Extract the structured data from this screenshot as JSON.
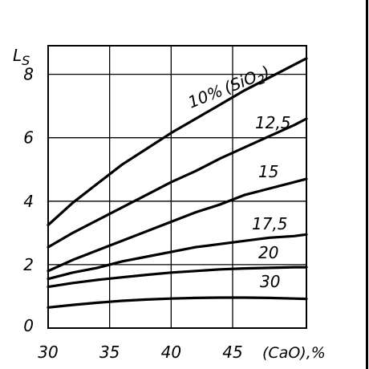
{
  "chart_data": {
    "type": "line",
    "title": "",
    "ylabel_main": "L",
    "ylabel_sub": "S",
    "xlabel": "(CaO),%",
    "x_ticks": [
      "30",
      "35",
      "40",
      "45"
    ],
    "y_ticks": [
      "0",
      "2",
      "4",
      "6",
      "8"
    ],
    "xlim": [
      30,
      51
    ],
    "ylim": [
      0,
      8.9
    ],
    "grid": true,
    "series_label_prefix": "(SiO",
    "series_label_sub": "2",
    "series_label_suffix": ")",
    "series": [
      {
        "name": "10%",
        "x": [
          30,
          32,
          34,
          36,
          38,
          40,
          42,
          44,
          46,
          48,
          50,
          51
        ],
        "y": [
          3.25,
          3.95,
          4.55,
          5.15,
          5.65,
          6.15,
          6.6,
          7.05,
          7.5,
          7.9,
          8.3,
          8.5
        ]
      },
      {
        "name": "12,5",
        "x": [
          30,
          32,
          34,
          36,
          38,
          40,
          42,
          44,
          46,
          48,
          50,
          51
        ],
        "y": [
          2.55,
          3.0,
          3.4,
          3.8,
          4.2,
          4.6,
          4.95,
          5.35,
          5.7,
          6.05,
          6.4,
          6.6
        ]
      },
      {
        "name": "15",
        "x": [
          30,
          32,
          34,
          36,
          38,
          40,
          42,
          44,
          46,
          48,
          50,
          51
        ],
        "y": [
          1.8,
          2.15,
          2.45,
          2.75,
          3.05,
          3.35,
          3.65,
          3.9,
          4.2,
          4.4,
          4.6,
          4.7
        ]
      },
      {
        "name": "17,5",
        "x": [
          30,
          32,
          34,
          36,
          38,
          40,
          42,
          44,
          46,
          48,
          50,
          51
        ],
        "y": [
          1.55,
          1.75,
          1.9,
          2.1,
          2.25,
          2.4,
          2.55,
          2.65,
          2.75,
          2.85,
          2.9,
          2.95
        ]
      },
      {
        "name": "20",
        "x": [
          30,
          32,
          34,
          36,
          38,
          40,
          42,
          44,
          46,
          48,
          50,
          51
        ],
        "y": [
          1.3,
          1.42,
          1.52,
          1.6,
          1.68,
          1.75,
          1.8,
          1.85,
          1.88,
          1.9,
          1.92,
          1.92
        ]
      },
      {
        "name": "30",
        "x": [
          30,
          32,
          34,
          36,
          38,
          40,
          42,
          44,
          46,
          48,
          50,
          51
        ],
        "y": [
          0.65,
          0.73,
          0.8,
          0.86,
          0.9,
          0.93,
          0.95,
          0.96,
          0.96,
          0.95,
          0.93,
          0.92
        ]
      }
    ]
  }
}
